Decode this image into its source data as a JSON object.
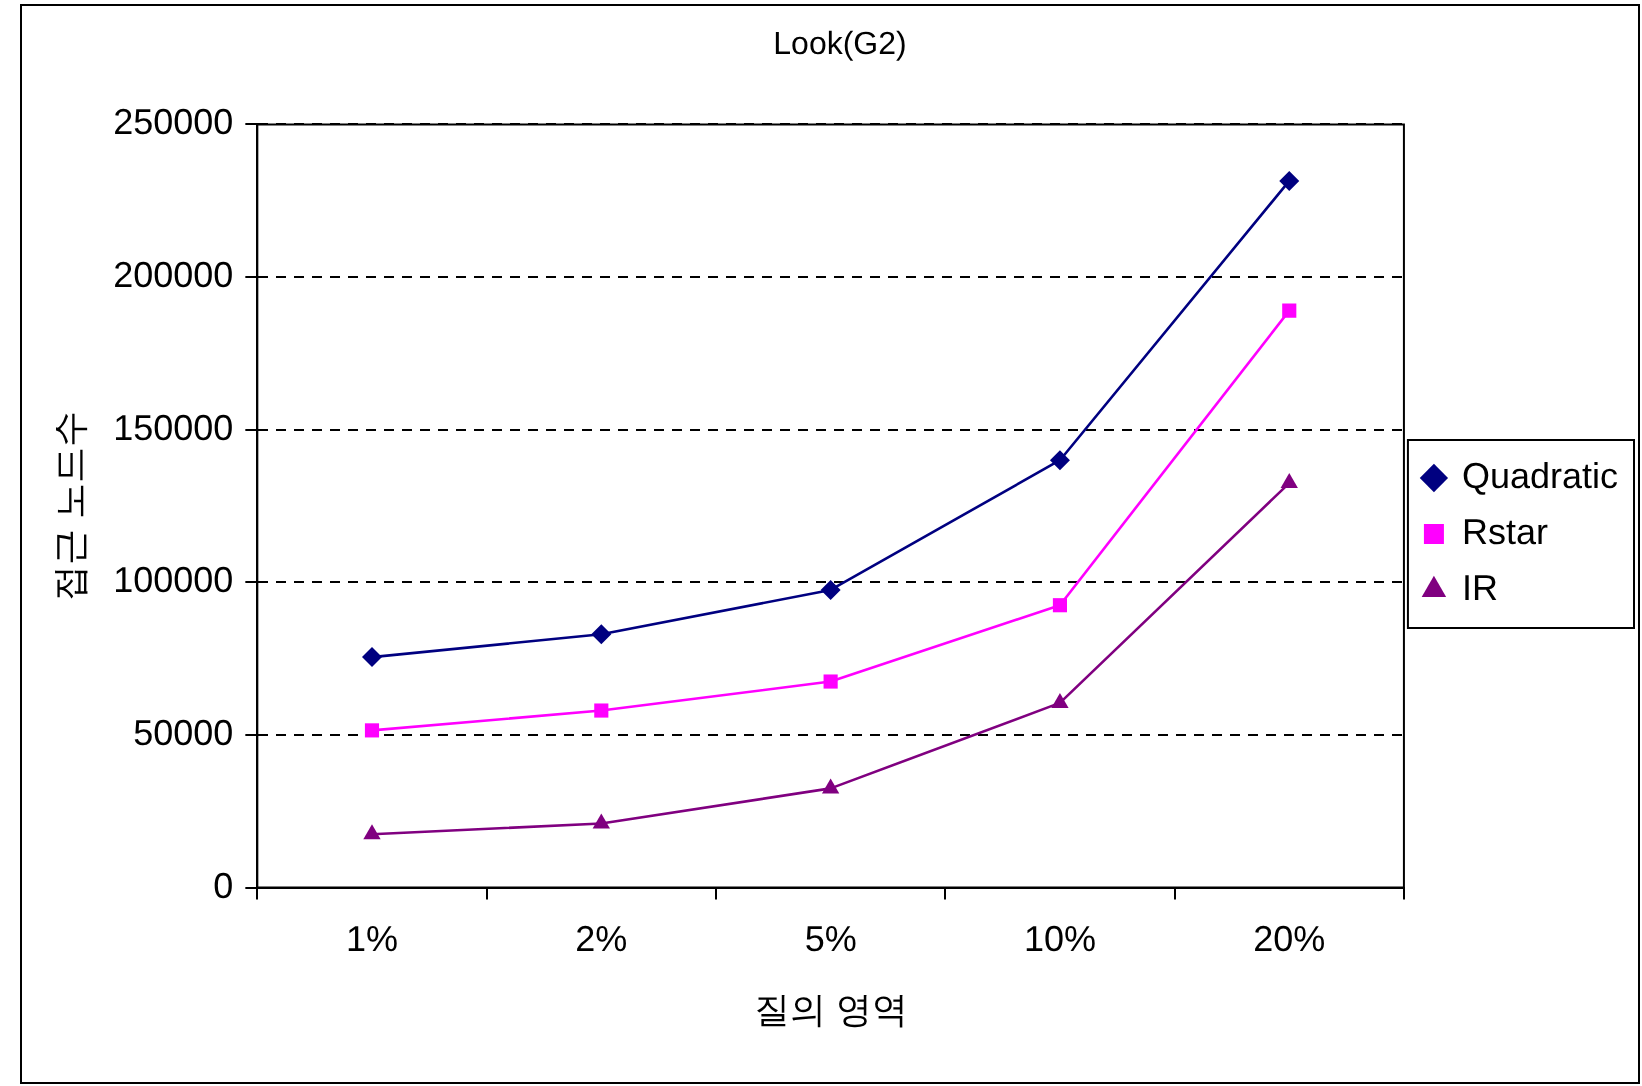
{
  "chart_data": {
    "type": "line",
    "title": "Look(G2)",
    "xlabel": "질의 영역",
    "ylabel": "접근 노드수",
    "categories": [
      "1%",
      "2%",
      "5%",
      "10%",
      "20%"
    ],
    "series": [
      {
        "name": "Quadratic",
        "color": "#000080",
        "marker": "diamond",
        "values": [
          75500,
          83000,
          97500,
          140000,
          231500
        ]
      },
      {
        "name": "Rstar",
        "color": "#ff00ff",
        "marker": "square",
        "values": [
          51500,
          58000,
          67500,
          92500,
          189000
        ]
      },
      {
        "name": "IR",
        "color": "#800080",
        "marker": "triangle",
        "values": [
          17500,
          21000,
          32500,
          60500,
          132500
        ]
      }
    ],
    "ylim": [
      0,
      250000
    ],
    "yticks": [
      0,
      50000,
      100000,
      150000,
      200000,
      250000
    ],
    "grid": "y",
    "legend": "right",
    "line_style": "solid"
  }
}
